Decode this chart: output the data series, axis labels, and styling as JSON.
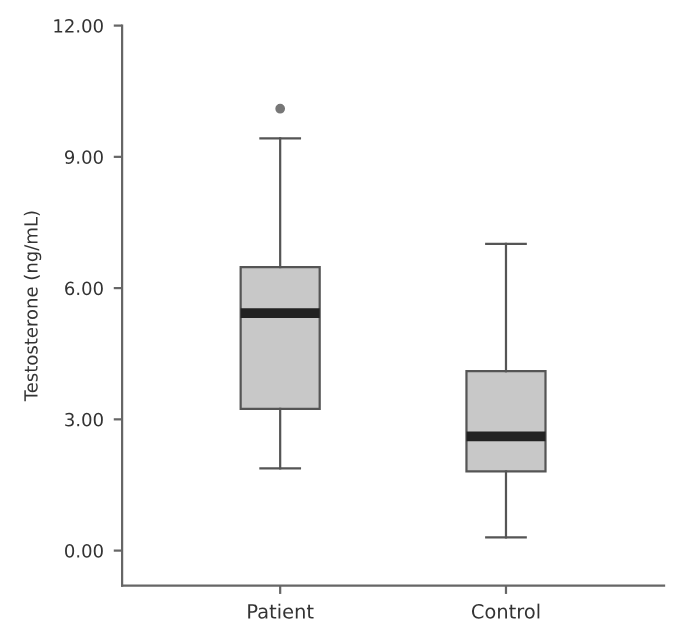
{
  "chart_data": {
    "type": "box",
    "ylabel": "Testosterone (ng/mL)",
    "categories": [
      "Patient",
      "Control"
    ],
    "boxes": [
      {
        "low": 1.88,
        "q1": 3.24,
        "median": 5.43,
        "q3": 6.48,
        "high": 9.42,
        "outliers": [
          10.1
        ]
      },
      {
        "low": 0.3,
        "q1": 1.81,
        "median": 2.61,
        "q3": 4.1,
        "high": 7.01
      }
    ],
    "color": "#c8c8c8",
    "ylim": [
      -0.8,
      12
    ],
    "yticks": [
      {
        "value": 0,
        "label": "0.00"
      },
      {
        "value": 3,
        "label": "3.00"
      },
      {
        "value": 6,
        "label": "6.00"
      },
      {
        "value": 9,
        "label": "9.00"
      },
      {
        "value": 12,
        "label": "12.00"
      }
    ],
    "grid": false
  }
}
